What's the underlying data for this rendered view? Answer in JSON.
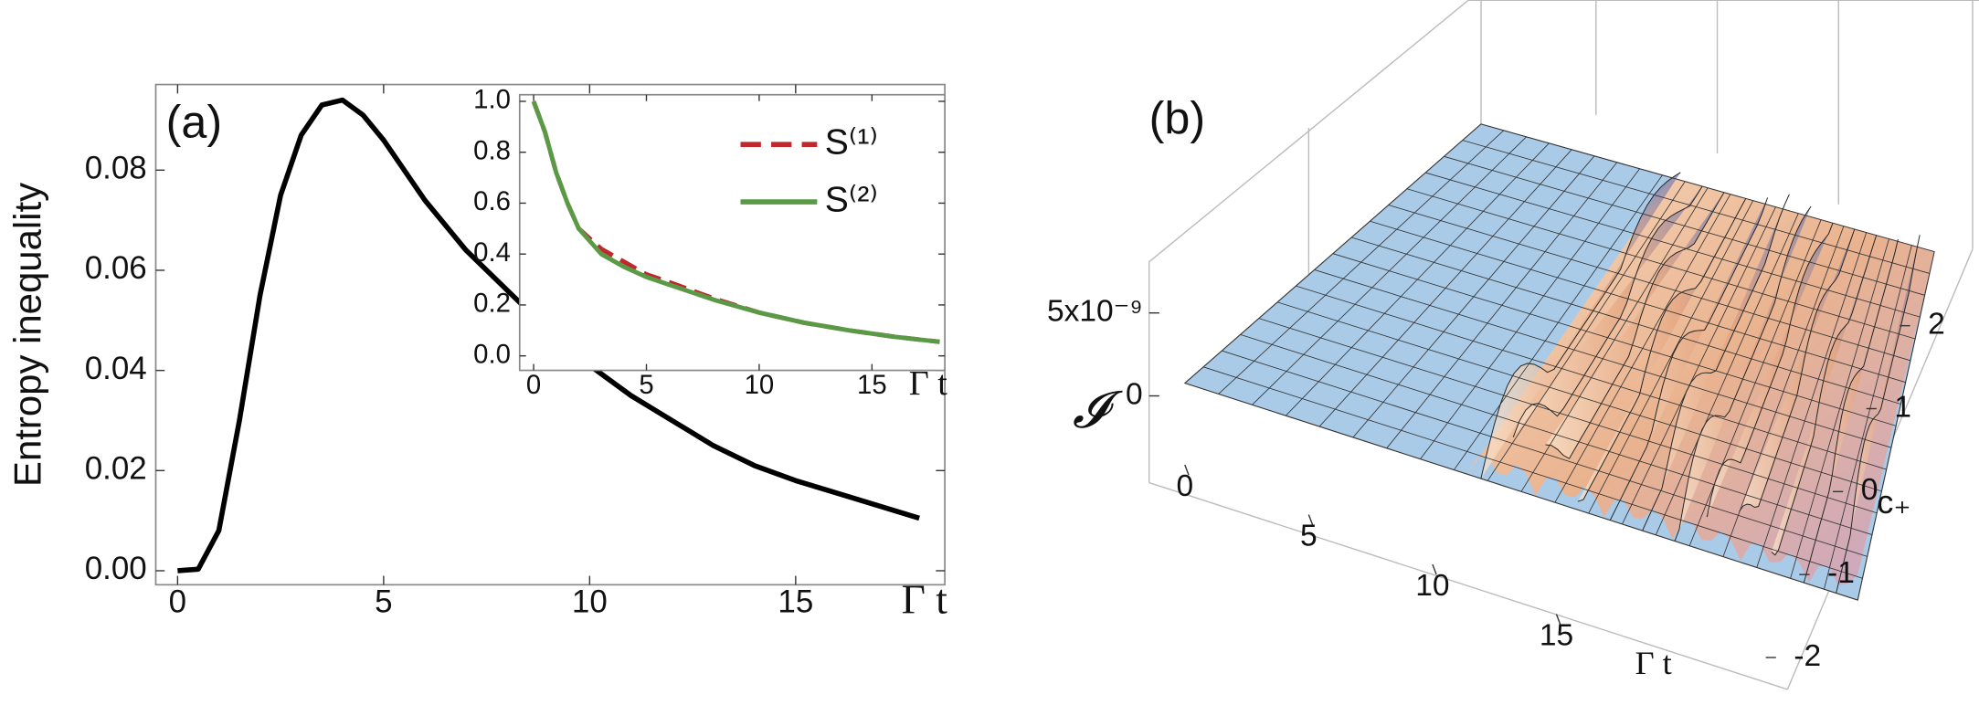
{
  "chart_data": [
    {
      "type": "line",
      "panel_label": "(a)",
      "ylabel": "Entropy inequality",
      "xlabel": "Γ t",
      "xlim": [
        -0.53,
        18.62
      ],
      "ylim": [
        -0.0028,
        0.0971
      ],
      "xticks": [
        0,
        5,
        10,
        15
      ],
      "yticks": [
        {
          "value": 0,
          "label": "0.00"
        },
        {
          "value": 0.02,
          "label": "0.02"
        },
        {
          "value": 0.04,
          "label": "0.04"
        },
        {
          "value": 0.06,
          "label": "0.06"
        },
        {
          "value": 0.08,
          "label": "0.08"
        }
      ],
      "x": [
        0,
        0.5,
        1,
        1.5,
        2,
        2.5,
        3,
        3.5,
        4,
        4.5,
        5,
        6,
        7,
        8,
        9,
        10,
        11,
        12,
        13,
        14,
        15,
        16,
        17,
        18
      ],
      "series": [
        {
          "color": "#000000",
          "values": [
            0,
            0.0003,
            0.008,
            0.03,
            0.055,
            0.075,
            0.087,
            0.093,
            0.094,
            0.091,
            0.086,
            0.074,
            0.064,
            0.056,
            0.048,
            0.041,
            0.035,
            0.03,
            0.025,
            0.021,
            0.018,
            0.0155,
            0.013,
            0.0105
          ]
        }
      ]
    },
    {
      "type": "line",
      "xlabel": "Γ t",
      "xlim": [
        -0.62,
        18.23
      ],
      "ylim": [
        -0.057,
        1.026
      ],
      "xticks": [
        0,
        5,
        10,
        15
      ],
      "yticks": [
        {
          "value": 0,
          "label": "0.0"
        },
        {
          "value": 0.2,
          "label": "0.2"
        },
        {
          "value": 0.4,
          "label": "0.4"
        },
        {
          "value": 0.6,
          "label": "0.6"
        },
        {
          "value": 0.8,
          "label": "0.8"
        },
        {
          "value": 1,
          "label": "1.0"
        }
      ],
      "x": [
        0,
        0.5,
        1,
        1.5,
        2,
        3,
        4,
        5,
        6,
        8,
        10,
        12,
        14,
        16,
        18
      ],
      "series": [
        {
          "name": "S⁽¹⁾",
          "color": "#c0282d",
          "dashed": true,
          "values": [
            1.0,
            0.88,
            0.72,
            0.6,
            0.5,
            0.42,
            0.37,
            0.32,
            0.29,
            0.225,
            0.17,
            0.13,
            0.1,
            0.075,
            0.055
          ]
        },
        {
          "name": "S⁽²⁾",
          "color": "#5a9a46",
          "dashed": false,
          "values": [
            1.0,
            0.88,
            0.72,
            0.6,
            0.5,
            0.4,
            0.35,
            0.31,
            0.28,
            0.22,
            0.17,
            0.13,
            0.1,
            0.075,
            0.055
          ]
        }
      ]
    },
    {
      "type": "surface3d",
      "panel_label": "(b)",
      "xlabel": "Γ t",
      "ylabel": "c₊",
      "zlabel": "𝓘",
      "xlim": [
        0,
        20
      ],
      "ylim": [
        -2,
        2
      ],
      "zlim": [
        0,
        5e-09
      ],
      "xticks": [
        0,
        5,
        10,
        15
      ],
      "yticks": [
        -2,
        -1,
        0,
        1,
        2
      ],
      "zticks": [
        0,
        {
          "value": 5e-09,
          "label": "5x10⁻⁹"
        }
      ]
    }
  ]
}
